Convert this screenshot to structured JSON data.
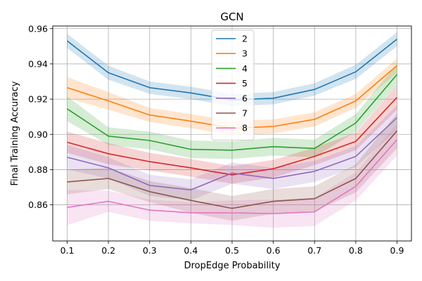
{
  "chart_data": {
    "type": "line",
    "title": "GCN",
    "xlabel": "DropEdge Probability",
    "ylabel": "Final Training Accuracy",
    "x": [
      0.1,
      0.2,
      0.3,
      0.4,
      0.5,
      0.6,
      0.7,
      0.8,
      0.9
    ],
    "x_tick_labels": [
      "0.1",
      "0.2",
      "0.3",
      "0.4",
      "0.5",
      "0.6",
      "0.7",
      "0.8",
      "0.9"
    ],
    "y_ticks": [
      0.86,
      0.88,
      0.9,
      0.92,
      0.94,
      0.96
    ],
    "y_tick_labels": [
      "0.86",
      "0.88",
      "0.90",
      "0.92",
      "0.94",
      "0.96"
    ],
    "xlim": [
      0.065,
      0.935
    ],
    "ylim": [
      0.8395,
      0.9615
    ],
    "grid": true,
    "legend_position": "top-center",
    "series": [
      {
        "name": "2",
        "color": "#1f77b4",
        "values": [
          0.953,
          0.935,
          0.9265,
          0.9235,
          0.9195,
          0.9205,
          0.9255,
          0.9355,
          0.954
        ],
        "band": [
          0.004,
          0.004,
          0.0035,
          0.0035,
          0.0035,
          0.0035,
          0.0035,
          0.004,
          0.004
        ]
      },
      {
        "name": "3",
        "color": "#ff7f0e",
        "values": [
          0.9265,
          0.919,
          0.911,
          0.9075,
          0.9035,
          0.9045,
          0.9085,
          0.919,
          0.939
        ],
        "band": [
          0.006,
          0.005,
          0.004,
          0.004,
          0.004,
          0.004,
          0.004,
          0.004,
          0.004
        ]
      },
      {
        "name": "4",
        "color": "#2ca02c",
        "values": [
          0.9145,
          0.899,
          0.8965,
          0.8915,
          0.891,
          0.893,
          0.892,
          0.9065,
          0.934
        ],
        "band": [
          0.007,
          0.005,
          0.005,
          0.005,
          0.005,
          0.005,
          0.005,
          0.005,
          0.006
        ]
      },
      {
        "name": "5",
        "color": "#d62728",
        "values": [
          0.8955,
          0.889,
          0.8845,
          0.881,
          0.877,
          0.8805,
          0.8875,
          0.896,
          0.921
        ],
        "band": [
          0.006,
          0.006,
          0.005,
          0.005,
          0.005,
          0.005,
          0.005,
          0.005,
          0.007
        ]
      },
      {
        "name": "6",
        "color": "#9467bd",
        "values": [
          0.887,
          0.881,
          0.871,
          0.8685,
          0.878,
          0.875,
          0.879,
          0.8875,
          0.9095
        ],
        "band": [
          0.007,
          0.006,
          0.006,
          0.006,
          0.006,
          0.006,
          0.006,
          0.006,
          0.007
        ]
      },
      {
        "name": "7",
        "color": "#8c564b",
        "values": [
          0.873,
          0.875,
          0.8675,
          0.8625,
          0.858,
          0.862,
          0.8635,
          0.875,
          0.902
        ],
        "band": [
          0.007,
          0.006,
          0.006,
          0.007,
          0.007,
          0.007,
          0.007,
          0.008,
          0.01
        ]
      },
      {
        "name": "8",
        "color": "#e377c2",
        "values": [
          0.8585,
          0.862,
          0.857,
          0.8555,
          0.8555,
          0.855,
          0.856,
          0.8705,
          0.897
        ],
        "band": [
          0.01,
          0.006,
          0.006,
          0.006,
          0.007,
          0.008,
          0.008,
          0.008,
          0.009
        ]
      }
    ]
  }
}
